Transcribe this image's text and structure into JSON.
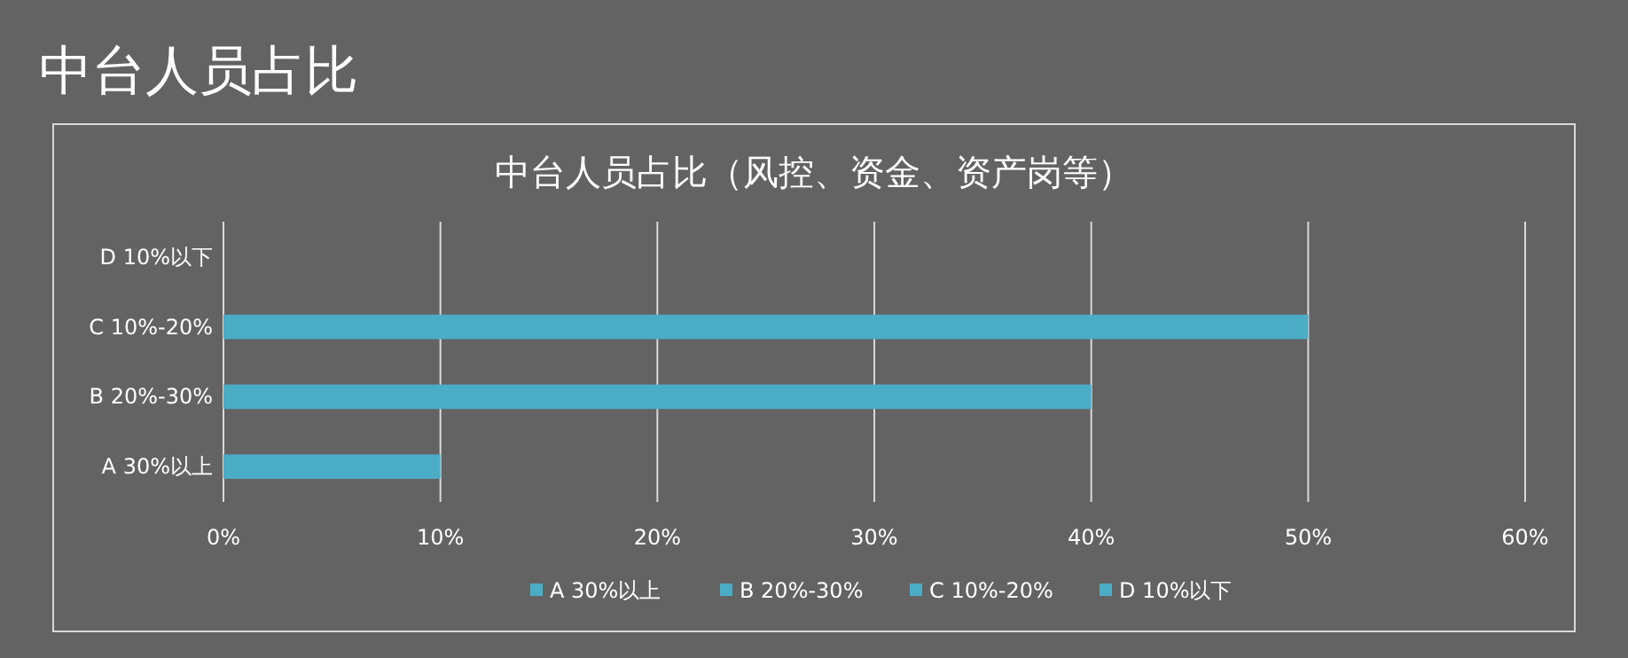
{
  "chart_data": {
    "type": "bar",
    "orientation": "horizontal",
    "stacked": true,
    "title": "中台人员占比",
    "subtitle": "中台人员占比（风控、资金、资产岗等）",
    "categories": [
      "D 10%以下",
      "C 10%-20%",
      "B 20%-30%",
      "A 30%以上"
    ],
    "series": [
      {
        "name": "A 30%以上",
        "color": "#4bacc6",
        "values": [
          null,
          null,
          null,
          10
        ]
      },
      {
        "name": "B 20%-30%",
        "color": "#4bacc6",
        "values": [
          null,
          null,
          40,
          null
        ]
      },
      {
        "name": "C 10%-20%",
        "color": "#4bacc6",
        "values": [
          null,
          50,
          null,
          null
        ]
      },
      {
        "name": "D 10%以下",
        "color": "#4bacc6",
        "values": [
          0,
          null,
          null,
          null
        ]
      }
    ],
    "xlim": [
      0,
      60
    ],
    "xticks": [
      {
        "value": 0,
        "label": "0%"
      },
      {
        "value": 10,
        "label": "10%"
      },
      {
        "value": 20,
        "label": "20%"
      },
      {
        "value": 30,
        "label": "30%"
      },
      {
        "value": 40,
        "label": "40%"
      },
      {
        "value": 50,
        "label": "50%"
      },
      {
        "value": 60,
        "label": "60%"
      }
    ],
    "grid": "x",
    "legend": "bottom"
  }
}
